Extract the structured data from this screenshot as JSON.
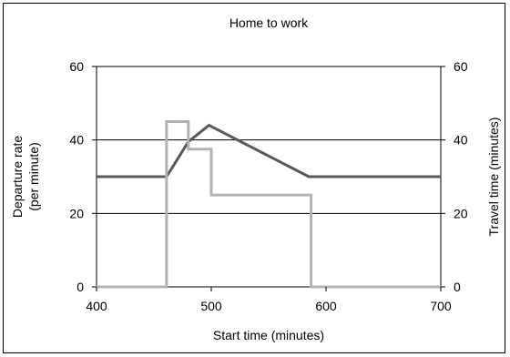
{
  "chart_data": {
    "type": "line",
    "title": "Home to work",
    "xlabel": "Start time (minutes)",
    "ylabel_left": [
      "Departure rate",
      "(per minute)"
    ],
    "ylabel_right": "Travel time (minutes)",
    "xlim": [
      400,
      700
    ],
    "ylim_left": [
      0,
      60
    ],
    "ylim_right": [
      0,
      60
    ],
    "xticks": [
      400,
      500,
      600,
      700
    ],
    "yticks_left": [
      0,
      20,
      40,
      60
    ],
    "yticks_right": [
      0,
      20,
      40,
      60
    ],
    "grid": "horizontal",
    "legend": "none",
    "series": [
      {
        "axis": "right",
        "color": "#595959",
        "x": [
          400,
          461,
          480,
          498,
          585,
          700
        ],
        "y": [
          30,
          30,
          39.5,
          44,
          30,
          30
        ]
      },
      {
        "axis": "left",
        "color": "#b2b2b2",
        "x": [
          400,
          461,
          461,
          480,
          480,
          500,
          500,
          530,
          530,
          587,
          587,
          700
        ],
        "y": [
          0,
          0,
          45,
          45,
          37.5,
          37.5,
          25,
          25,
          25,
          25,
          0,
          0
        ]
      }
    ]
  }
}
